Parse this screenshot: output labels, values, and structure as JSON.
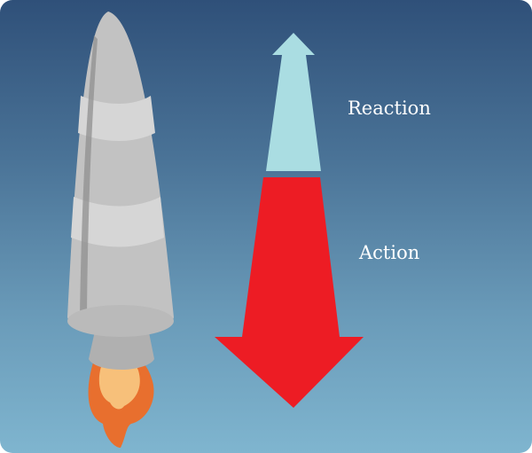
{
  "labels": {
    "reaction": "Reaction",
    "action": "Action"
  },
  "colors": {
    "background_top": "#2f5079",
    "background_bottom": "#7fb5cf",
    "reaction_arrow": "#aadde2",
    "action_arrow": "#ed1c24",
    "rocket_body": "#c2c2c2",
    "rocket_band": "#d6d6d6",
    "rocket_shadow": "#8f8f8f",
    "nozzle": "#b0b0b0",
    "flame_outer": "#e86f2e",
    "flame_inner": "#f7c07a"
  },
  "icons": [
    "rocket-icon",
    "flame-icon",
    "reaction-arrow",
    "action-arrow"
  ]
}
